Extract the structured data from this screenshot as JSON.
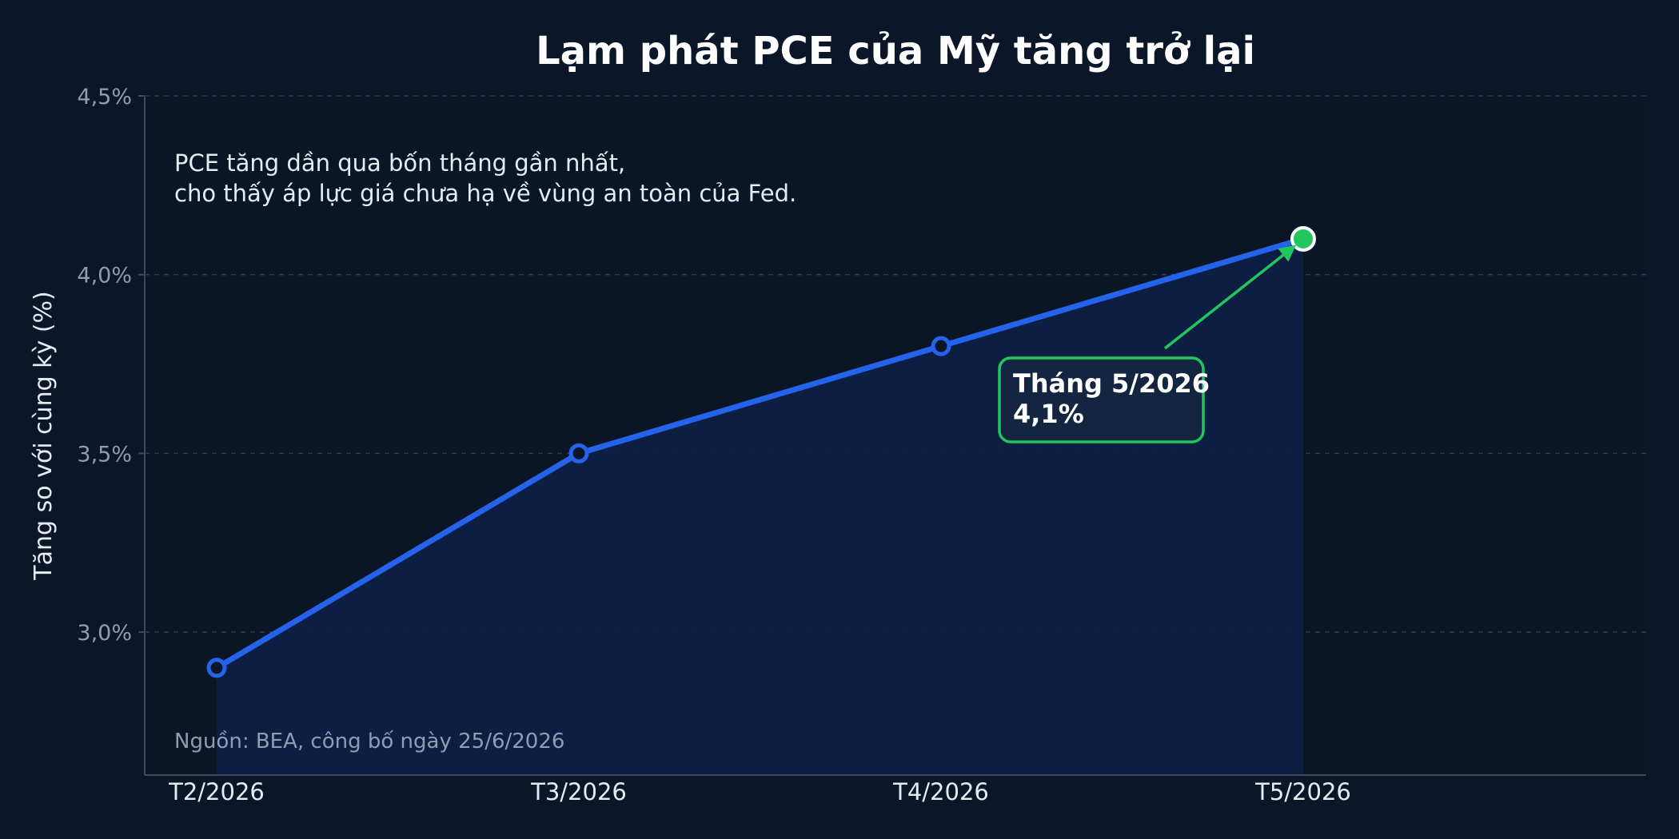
{
  "chart_data": {
    "type": "line",
    "title": "Lạm phát PCE của Mỹ tăng trở lại",
    "ylabel": "Tăng so với cùng kỳ (%)",
    "xlabel": "",
    "categories": [
      "T2/2026",
      "T3/2026",
      "T4/2026",
      "T5/2026"
    ],
    "series": [
      {
        "values": [
          2.9,
          3.5,
          3.8,
          4.1
        ],
        "color": "#2563eb"
      }
    ],
    "ylim": [
      2.6,
      4.5
    ],
    "yticks": [
      3.0,
      3.5,
      4.0,
      4.5
    ],
    "ytick_labels": [
      "3,0%",
      "3,5%",
      "4,0%",
      "4,5%"
    ],
    "grid": true,
    "subtitle_lines": [
      "PCE tăng dần qua bốn tháng gần nhất,",
      "cho thấy áp lực giá chưa hạ về vùng an toàn của Fed."
    ],
    "annotation": {
      "line1": "Tháng 5/2026",
      "line2": "4,1%",
      "point_index": 3,
      "color": "#22c55e"
    },
    "source": "Nguồn: BEA, công bố ngày 25/6/2026"
  }
}
